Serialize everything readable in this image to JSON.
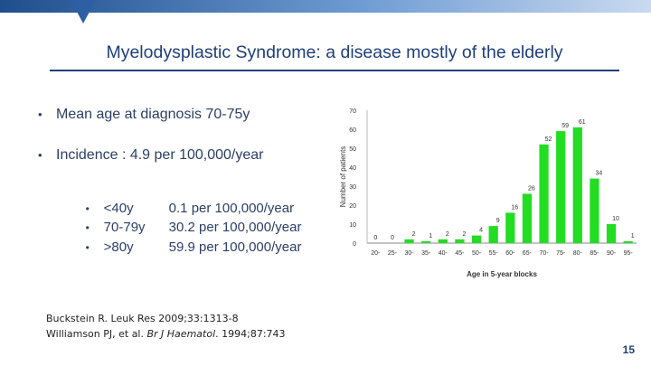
{
  "slide": {
    "title": "Myelodysplastic Syndrome: a disease mostly of the elderly",
    "bullets": [
      "Mean age at diagnosis 70-75y",
      "Incidence : 4.9 per 100,000/year"
    ],
    "sub_bullets": [
      {
        "group": "<40y",
        "rate": "0.1 per 100,000/year"
      },
      {
        "group": "70-79y",
        "rate": "30.2 per 100,000/year"
      },
      {
        "group": ">80y",
        "rate": "59.9 per 100,000/year"
      }
    ],
    "bullet_glyph": "•",
    "references": {
      "ref1": "Buckstein R. Leuk Res 2009;33:1313-8",
      "ref2_author": "Williamson PJ, et al. ",
      "ref2_journal": "Br J Haematol",
      "ref2_rest": ". 1994;87:743"
    },
    "page_number": "15"
  },
  "colors": {
    "bar": "#22dd22",
    "title": "#1f3f7a",
    "text": "#2b3f66"
  },
  "chart_data": {
    "type": "bar",
    "categories": [
      "20-",
      "25-",
      "30-",
      "35-",
      "40-",
      "45-",
      "50-",
      "55-",
      "60-",
      "65-",
      "70-",
      "75-",
      "80-",
      "85-",
      "90-",
      "95-"
    ],
    "values": [
      0,
      0,
      2,
      1,
      2,
      2,
      4,
      9,
      16,
      26,
      52,
      59,
      61,
      34,
      10,
      1
    ],
    "title": "",
    "xlabel": "Age in 5-year blocks",
    "ylabel": "Number of patients",
    "ylim": [
      0,
      70
    ],
    "yticks": [
      0,
      10,
      20,
      30,
      40,
      50,
      60,
      70
    ],
    "grid": false,
    "legend": "none"
  }
}
